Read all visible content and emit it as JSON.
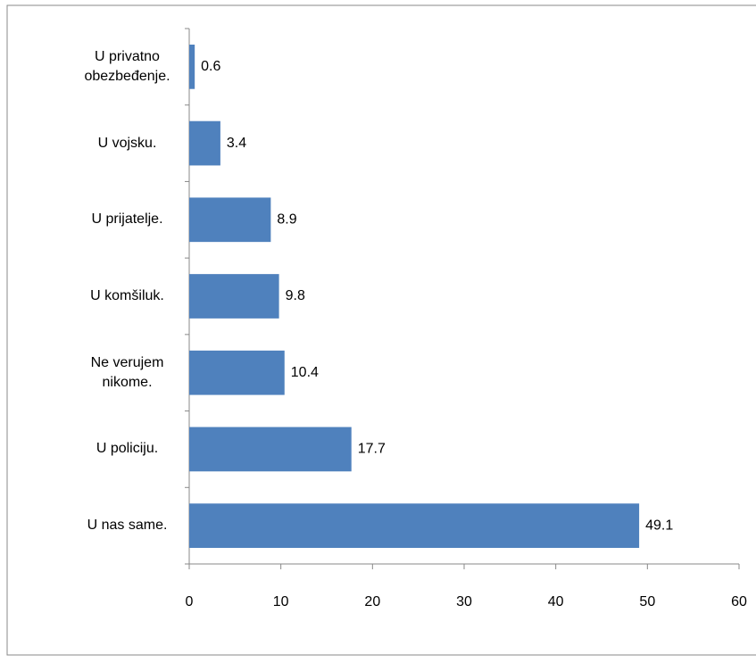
{
  "chart_data": {
    "type": "barh",
    "categories": [
      "U privatno obezbeđenje.",
      "U vojsku.",
      "U prijatelje.",
      "U komšiluk.",
      "Ne verujem nikome.",
      "U policiju.",
      "U nas same."
    ],
    "values": [
      0.6,
      3.4,
      8.9,
      9.8,
      10.4,
      17.7,
      49.1
    ],
    "color": "#4f81bd",
    "xlim": [
      0,
      60
    ],
    "xticks": [
      0,
      10,
      20,
      30,
      40,
      50,
      60
    ],
    "grid": false
  }
}
